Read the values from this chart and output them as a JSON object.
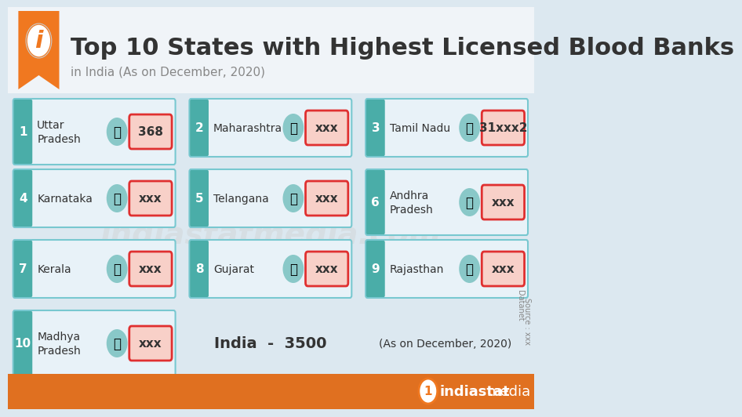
{
  "title": "Top 10 States with Highest Licensed Blood Banks",
  "subtitle": "in India (As on December, 2020)",
  "background_color": "#dce8f0",
  "header_bg": "#ffffff",
  "orange_color": "#f07820",
  "teal_color": "#4aada8",
  "card_bg": "#e8f2f8",
  "card_border": "#78c8d0",
  "value_bg": "#f8d0c8",
  "value_border": "#e03030",
  "text_dark": "#333333",
  "footer_bg": "#e07020",
  "states": [
    {
      "rank": 1,
      "name": "Uttar\nPradesh",
      "value": "368"
    },
    {
      "rank": 2,
      "name": "Maharashtra",
      "value": "xxx"
    },
    {
      "rank": 3,
      "name": "Tamil Nadu",
      "value": "31xxx2"
    },
    {
      "rank": 4,
      "name": "Karnataka",
      "value": "xxx"
    },
    {
      "rank": 5,
      "name": "Telangana",
      "value": "xxx"
    },
    {
      "rank": 6,
      "name": "Andhra\nPradesh",
      "value": "xxx"
    },
    {
      "rank": 7,
      "name": "Kerala",
      "value": "xxx"
    },
    {
      "rank": 8,
      "name": "Gujarat",
      "value": "xxx"
    },
    {
      "rank": 9,
      "name": "Rajasthan",
      "value": "xxx"
    },
    {
      "rank": 10,
      "name": "Madhya\nPradesh",
      "value": "xxx"
    }
  ],
  "india_total": "India  -  3500",
  "date_note": "(As on December, 2020)",
  "source_text": "Source : xxx",
  "datanet_text": "Datanet",
  "brand_text": "indiastatmedia",
  "brand_color": "#e07020"
}
